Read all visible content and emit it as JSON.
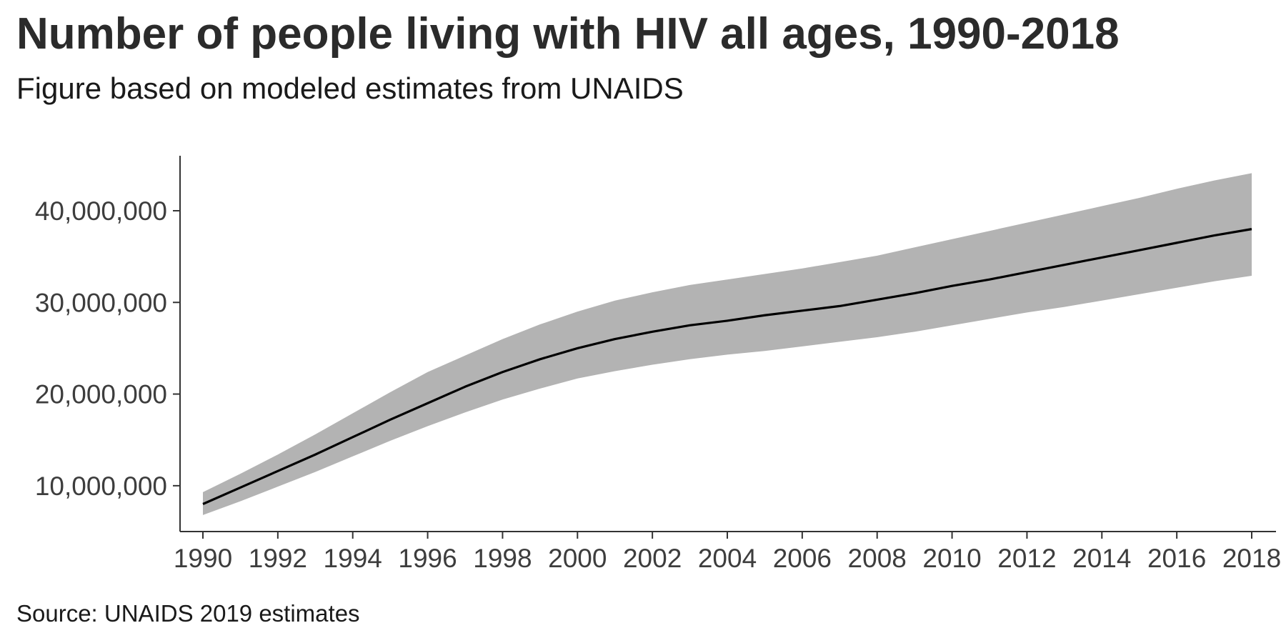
{
  "chart_data": {
    "type": "area",
    "title": "Number of people living with HIV all ages, 1990-2018",
    "subtitle": "Figure based on modeled estimates from UNAIDS",
    "caption": "Source: UNAIDS 2019 estimates",
    "xlabel": "",
    "ylabel": "",
    "x": [
      1990,
      1991,
      1992,
      1993,
      1994,
      1995,
      1996,
      1997,
      1998,
      1999,
      2000,
      2001,
      2002,
      2003,
      2004,
      2005,
      2006,
      2007,
      2008,
      2009,
      2010,
      2011,
      2012,
      2013,
      2014,
      2015,
      2016,
      2017,
      2018
    ],
    "series": [
      {
        "values": [
          8000000,
          9800000,
          11600000,
          13400000,
          15300000,
          17200000,
          19000000,
          20800000,
          22400000,
          23800000,
          25000000,
          26000000,
          26800000,
          27500000,
          28000000,
          28600000,
          29100000,
          29600000,
          30300000,
          31000000,
          31800000,
          32500000,
          33300000,
          34100000,
          34900000,
          35700000,
          36500000,
          37300000,
          38000000
        ]
      }
    ],
    "band": {
      "lower": [
        6800000,
        8300000,
        9900000,
        11500000,
        13200000,
        14900000,
        16500000,
        18000000,
        19400000,
        20600000,
        21700000,
        22500000,
        23200000,
        23800000,
        24300000,
        24700000,
        25200000,
        25700000,
        26200000,
        26800000,
        27500000,
        28200000,
        28900000,
        29500000,
        30200000,
        30900000,
        31600000,
        32300000,
        32900000
      ],
      "upper": [
        9300000,
        11300000,
        13400000,
        15600000,
        17900000,
        20200000,
        22400000,
        24200000,
        26000000,
        27600000,
        29000000,
        30200000,
        31100000,
        31900000,
        32500000,
        33100000,
        33700000,
        34400000,
        35100000,
        36000000,
        36900000,
        37800000,
        38700000,
        39600000,
        40500000,
        41400000,
        42400000,
        43300000,
        44100000
      ]
    },
    "ylim": [
      5000000,
      46000000
    ],
    "xlim": [
      1989.4,
      1990.6
    ],
    "x_ticks": [
      1990,
      1992,
      1994,
      1996,
      1998,
      2000,
      2002,
      2004,
      2006,
      2008,
      2010,
      2012,
      2014,
      2016,
      2018
    ],
    "x_tick_labels": [
      "1990",
      "1992",
      "1994",
      "1996",
      "1998",
      "2000",
      "2002",
      "2004",
      "2006",
      "2008",
      "2010",
      "2012",
      "2014",
      "2016",
      "2018"
    ],
    "y_ticks": [
      10000000,
      20000000,
      30000000,
      40000000
    ],
    "y_tick_labels": [
      "10,000,000",
      "20,000,000",
      "30,000,000",
      "40,000,000"
    ],
    "grid": false,
    "legend": "none",
    "colors": {
      "line": "#000000",
      "band": "#b3b3b3",
      "axis": "#333333"
    }
  }
}
